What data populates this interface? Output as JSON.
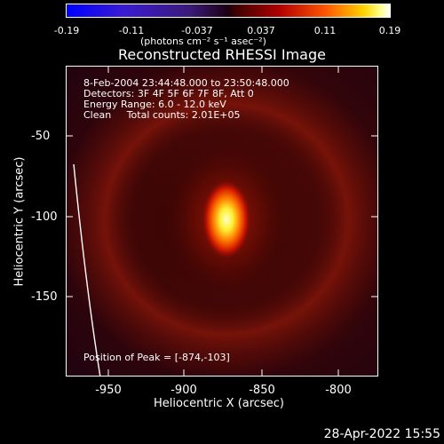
{
  "colorbar": {
    "ticks": [
      "-0.19",
      "-0.11",
      "-0.037",
      "0.037",
      "0.11",
      "0.19"
    ],
    "unit": "(photons cm⁻² s⁻¹ asec⁻²)"
  },
  "title": "Reconstructed RHESSI Image",
  "info": {
    "time": "8-Feb-2004 23:44:48.000 to 23:50:48.000",
    "detectors": "Detectors: 3F 4F 5F 6F 7F 8F, Att 0",
    "energy": "Energy Range: 6.0 - 12.0 keV",
    "clean": "Clean     Total counts: 2.01E+05",
    "peak": "Position of Peak = [-874,-103]"
  },
  "axes": {
    "xlabel": "Heliocentric X (arcsec)",
    "ylabel": "Heliocentric Y (arcsec)",
    "xticks": [
      "-950",
      "-900",
      "-850",
      "-800"
    ],
    "yticks": [
      "-50",
      "-100",
      "-150"
    ]
  },
  "footer": {
    "date": "28-Apr-2022 15:55"
  }
}
